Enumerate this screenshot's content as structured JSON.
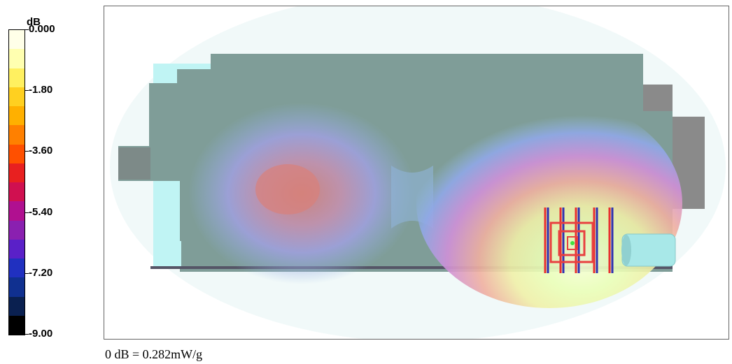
{
  "chart_data": {
    "type": "heatmap",
    "colorbar": {
      "unit": "dB",
      "ticks": [
        {
          "value": 0.0,
          "label": "0.000"
        },
        {
          "value": -1.8,
          "label": "-1.80"
        },
        {
          "value": -3.6,
          "label": "-3.60"
        },
        {
          "value": -5.4,
          "label": "-5.40"
        },
        {
          "value": -7.2,
          "label": "-7.20"
        },
        {
          "value": -9.0,
          "label": "-9.00"
        }
      ],
      "range": [
        -9.0,
        0.0
      ],
      "stops": [
        {
          "value": 0.0,
          "color": "#ffffe8"
        },
        {
          "value": -0.6,
          "color": "#ffffb0"
        },
        {
          "value": -1.2,
          "color": "#fff060"
        },
        {
          "value": -1.8,
          "color": "#ffd020"
        },
        {
          "value": -2.4,
          "color": "#ffb000"
        },
        {
          "value": -3.0,
          "color": "#ff8000"
        },
        {
          "value": -3.6,
          "color": "#ff5000"
        },
        {
          "value": -4.2,
          "color": "#e82020"
        },
        {
          "value": -4.8,
          "color": "#d01050"
        },
        {
          "value": -5.4,
          "color": "#b01090"
        },
        {
          "value": -6.0,
          "color": "#8a20b0"
        },
        {
          "value": -6.6,
          "color": "#5a20c8"
        },
        {
          "value": -7.2,
          "color": "#2030c0"
        },
        {
          "value": -7.8,
          "color": "#103090"
        },
        {
          "value": -8.4,
          "color": "#0a2050"
        },
        {
          "value": -9.0,
          "color": "#000000"
        }
      ]
    },
    "reference_label": "0 dB = 0.282mW/g"
  }
}
